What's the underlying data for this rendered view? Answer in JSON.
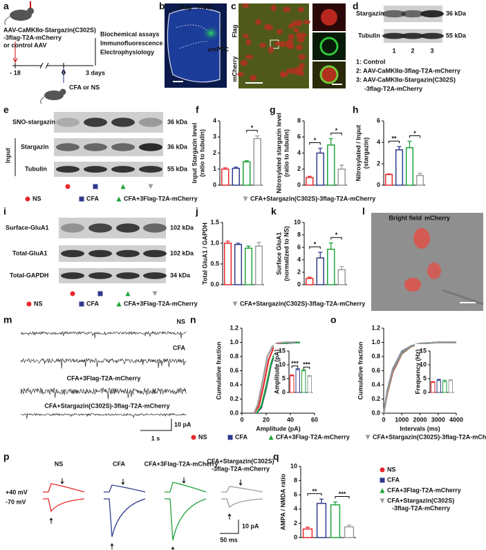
{
  "panel_labels": [
    "a",
    "b",
    "c",
    "d",
    "e",
    "f",
    "g",
    "h",
    "i",
    "j",
    "k",
    "l",
    "m",
    "n",
    "o",
    "p",
    "q"
  ],
  "panel_a": {
    "virus": [
      "AAV-CaMKIIα-Stargazin(C302S)",
      "-3flag-T2A-mCherry",
      "or control AAV"
    ],
    "readouts": [
      "Biochemical assays",
      "Immunofluorescence",
      "Electrophysiology"
    ],
    "timeline": [
      "- 18",
      "0",
      "3 days"
    ],
    "injection": "CFA or NS"
  },
  "panel_b": {
    "stain1": "Flag",
    "stain2": "HOE",
    "region": "vmPFC"
  },
  "panel_c": {
    "stain1": "mCherry",
    "stain2": "Flag"
  },
  "panel_d": {
    "bands": [
      "Stargazin",
      "Tubulin"
    ],
    "sizes": [
      "36 kDa",
      "55 kDa"
    ],
    "lanes": [
      "1",
      "2",
      "3"
    ],
    "legend": [
      "1: Control",
      "2: AAV-CaMKIIα-3flag-T2A-mCherry",
      "3: AAV-CaMKIIα-Stargazin(C302S)",
      "-3flag-T2A-mCherry"
    ]
  },
  "panel_e": {
    "bands": [
      "SNO-stargazin",
      "Stargazin",
      "Tubulin"
    ],
    "group": "Input",
    "sizes": [
      "36 kDa",
      "36 kDa",
      "55 kDa"
    ]
  },
  "legend_ef": [
    "NS",
    "CFA",
    "CFA+3Flag-T2A-mCherry",
    "CFA+Stargazin(C302S)-3flag-T2A-mCherry"
  ],
  "panel_i": {
    "bands": [
      "Surface-GluA1",
      "Total-GluA1",
      "Total-GAPDH"
    ],
    "sizes": [
      "102 kDa",
      "102 kDa",
      "34 kDa"
    ],
    "legend": [
      "NS",
      "CFA",
      "CFA+3Flag-T2A-mCherry",
      "CFA+Stargazin(C302S)-3flag-T2A-mCherry"
    ]
  },
  "panel_l": {
    "channel1": "Bright field",
    "channel2": "mCherry"
  },
  "panel_m": {
    "traces": [
      "NS",
      "CFA",
      "CFA+3Flag-T2A-mCherry",
      "CFA+Stargazin(C302S)-3flag-T2A-mCherry"
    ],
    "scale_y": "10 pA",
    "scale_x": "1 s"
  },
  "legend_no": [
    "NS",
    "CFA",
    "CFA+3Flag-T2A-mCherry",
    "CFA+Stargazin(C302S)-3flag-T2A-mCherry"
  ],
  "panel_p": {
    "traces": [
      "NS",
      "CFA",
      "CFA+3Flag-T2A-mCherry",
      "CFA+Stargazin(C302S)",
      "-3flag-T2A-mCherry"
    ],
    "holding": [
      "+40 mV",
      "-70 mV"
    ],
    "scale_y": "10 pA",
    "scale_x": "50 ms"
  },
  "chart_data": [
    {
      "type": "bar",
      "ylabel": [
        "Input Stargazin level",
        "(ratio to tubulin)"
      ],
      "values": [
        1.0,
        1.05,
        1.45,
        2.9
      ],
      "errors": [
        0.08,
        0.07,
        0.07,
        0.17
      ],
      "colors": [
        "#e8262a",
        "#2e3a8c",
        "#1fa23a",
        "#9b9b9b"
      ],
      "ylim": [
        0,
        4
      ],
      "yticks": [
        0,
        1,
        2,
        3,
        4
      ],
      "significance": [
        {
          "label": "*",
          "bars": [
            2,
            3
          ]
        }
      ]
    },
    {
      "type": "bar",
      "ylabel": [
        "Nitrosylated stargazin level",
        "(ratio to tubulin)"
      ],
      "values": [
        0.95,
        4.0,
        5.0,
        2.0
      ],
      "errors": [
        0.15,
        0.6,
        0.8,
        0.5
      ],
      "colors": [
        "#e8262a",
        "#2e3a8c",
        "#1fa23a",
        "#9b9b9b"
      ],
      "ylim": [
        0,
        8
      ],
      "yticks": [
        0,
        2,
        4,
        6,
        8
      ],
      "significance": [
        {
          "label": "*",
          "bars": [
            0,
            1
          ]
        },
        {
          "label": "*",
          "bars": [
            2,
            3
          ]
        }
      ]
    },
    {
      "type": "bar",
      "ylabel": [
        "Nitrosylated / Input",
        "(stargazin)"
      ],
      "values": [
        1.0,
        3.3,
        3.5,
        0.9
      ],
      "errors": [
        0.05,
        0.3,
        0.6,
        0.2
      ],
      "colors": [
        "#e8262a",
        "#2e3a8c",
        "#1fa23a",
        "#9b9b9b"
      ],
      "ylim": [
        0,
        6
      ],
      "yticks": [
        0,
        2,
        4,
        6
      ],
      "significance": [
        {
          "label": "**",
          "bars": [
            0,
            1
          ]
        },
        {
          "label": "*",
          "bars": [
            2,
            3
          ]
        }
      ]
    },
    {
      "type": "bar",
      "ylabel": [
        "Total GluA1 / GAPDH"
      ],
      "values": [
        1.0,
        0.97,
        0.88,
        0.93
      ],
      "errors": [
        0.05,
        0.03,
        0.05,
        0.09
      ],
      "colors": [
        "#e8262a",
        "#2e3a8c",
        "#1fa23a",
        "#9b9b9b"
      ],
      "ylim": [
        0,
        1.5
      ],
      "yticks": [
        {
          "value": 0,
          "label": "0.0"
        },
        0.5,
        {
          "value": 1,
          "label": "1.0"
        },
        1.5
      ],
      "significance": []
    },
    {
      "type": "bar",
      "ylabel": [
        "Surface GluA1",
        "(normalized to NS)"
      ],
      "values": [
        1.0,
        4.3,
        5.7,
        2.4
      ],
      "errors": [
        0.2,
        0.9,
        1.0,
        0.5
      ],
      "colors": [
        "#e8262a",
        "#2e3a8c",
        "#1fa23a",
        "#9b9b9b"
      ],
      "ylim": [
        0,
        10
      ],
      "yticks": [
        0,
        2,
        4,
        6,
        8,
        10
      ],
      "significance": [
        {
          "label": "*",
          "bars": [
            0,
            1
          ]
        },
        {
          "label": "*",
          "bars": [
            2,
            3
          ]
        }
      ]
    },
    {
      "type": "line",
      "ylabel": [
        "Cumulative  fraction"
      ],
      "xlabel": "Amplitude (pA)",
      "xlim": [
        0,
        60
      ],
      "xticks": [
        0,
        20,
        40,
        60
      ],
      "ylim": [
        0,
        1.2
      ],
      "yticks": [
        {
          "value": 0,
          "label": "0.0"
        },
        0.2,
        0.4,
        0.6,
        0.8,
        {
          "value": 1,
          "label": "1.0"
        },
        1.2
      ],
      "series": [
        {
          "name": "NS",
          "color": "#e8262a",
          "x": [
            10,
            14,
            18,
            22,
            26,
            30,
            36,
            45
          ],
          "values": [
            0,
            0.1,
            0.4,
            0.75,
            0.92,
            0.98,
            1,
            1
          ]
        },
        {
          "name": "CFA",
          "color": "#2e3a8c",
          "x": [
            12,
            16,
            20,
            24,
            28,
            32,
            38,
            48
          ],
          "values": [
            0,
            0.08,
            0.35,
            0.68,
            0.88,
            0.96,
            0.99,
            1
          ]
        },
        {
          "name": "CFA+3Flag-T2A-mCherry",
          "color": "#1fa23a",
          "x": [
            12,
            16,
            20,
            24,
            28,
            32,
            38,
            48
          ],
          "values": [
            0,
            0.1,
            0.38,
            0.7,
            0.9,
            0.97,
            0.995,
            1
          ]
        },
        {
          "name": "CFA+Stargazin(C302S)-3flag-T2A-mCherry",
          "color": "#9b9b9b",
          "x": [
            10,
            13,
            17,
            21,
            25,
            29,
            35,
            44
          ],
          "values": [
            0,
            0.12,
            0.45,
            0.8,
            0.94,
            0.99,
            1,
            1
          ]
        }
      ]
    },
    {
      "type": "bar",
      "ylabel": [
        "Amplitude (pA)"
      ],
      "values": [
        6.0,
        8.2,
        7.8,
        5.8
      ],
      "errors": [
        0.3,
        0.4,
        0.4,
        0.3
      ],
      "colors": [
        "#e8262a",
        "#2e3a8c",
        "#1fa23a",
        "#9b9b9b"
      ],
      "ylim": [
        0,
        15
      ],
      "yticks": [
        0,
        5,
        10,
        15
      ],
      "significance": [
        {
          "label": "***",
          "bars": [
            0,
            1
          ]
        },
        {
          "label": "***",
          "bars": [
            2,
            3
          ]
        }
      ]
    },
    {
      "type": "line",
      "ylabel": [
        "Cumulative  fraction"
      ],
      "xlabel": "Intervals (ms)",
      "xlim": [
        0,
        4000
      ],
      "xticks": [
        0,
        1000,
        2000,
        3000,
        4000
      ],
      "ylim": [
        0,
        1.2
      ],
      "yticks": [
        {
          "value": 0,
          "label": "0.0"
        },
        0.2,
        0.4,
        0.6,
        0.8,
        {
          "value": 1,
          "label": "1.0"
        },
        1.2
      ],
      "series": [
        {
          "name": "NS",
          "color": "#e8262a",
          "x": [
            0,
            200,
            500,
            1000,
            1500,
            2000,
            3000,
            4000
          ],
          "values": [
            0,
            0.28,
            0.58,
            0.84,
            0.94,
            0.98,
            1,
            1
          ]
        },
        {
          "name": "CFA",
          "color": "#2e3a8c",
          "x": [
            0,
            200,
            500,
            1000,
            1500,
            2000,
            3000,
            4000
          ],
          "values": [
            0,
            0.32,
            0.62,
            0.87,
            0.95,
            0.985,
            1,
            1
          ]
        },
        {
          "name": "CFA+3Flag-T2A-mCherry",
          "color": "#1fa23a",
          "x": [
            0,
            200,
            500,
            1000,
            1500,
            2000,
            3000,
            4000
          ],
          "values": [
            0,
            0.3,
            0.6,
            0.85,
            0.945,
            0.98,
            1,
            1
          ]
        },
        {
          "name": "CFA+Stargazin(C302S)-3flag-T2A-mCherry",
          "color": "#9b9b9b",
          "x": [
            0,
            200,
            500,
            1000,
            1500,
            2000,
            3000,
            4000
          ],
          "values": [
            0,
            0.31,
            0.61,
            0.86,
            0.95,
            0.985,
            1,
            1
          ]
        }
      ]
    },
    {
      "type": "bar",
      "ylabel": [
        "Frequency (Hz)"
      ],
      "values": [
        3.6,
        4.3,
        3.9,
        4.2
      ],
      "errors": [
        0.3,
        0.4,
        0.5,
        0.4
      ],
      "colors": [
        "#e8262a",
        "#2e3a8c",
        "#1fa23a",
        "#9b9b9b"
      ],
      "ylim": [
        0,
        15
      ],
      "yticks": [
        0,
        5,
        10,
        15
      ],
      "significance": []
    },
    {
      "type": "bar",
      "ylabel": [
        "AMPA / NMDA ratio"
      ],
      "values": [
        1.2,
        4.8,
        4.6,
        1.5
      ],
      "errors": [
        0.25,
        0.6,
        0.4,
        0.25
      ],
      "colors": [
        "#e8262a",
        "#2e3a8c",
        "#1fa23a",
        "#9b9b9b"
      ],
      "ylim": [
        0,
        10
      ],
      "yticks": [
        0,
        2,
        4,
        6,
        8,
        10
      ],
      "significance": [
        {
          "label": "**",
          "bars": [
            0,
            1
          ]
        },
        {
          "label": "***",
          "bars": [
            2,
            3
          ]
        }
      ],
      "legend": [
        "NS",
        "CFA",
        "CFA+3Flag-T2A-mCherry",
        "CFA+Stargazin(C302S)",
        "-3flag-T2A-mCherry"
      ]
    }
  ]
}
